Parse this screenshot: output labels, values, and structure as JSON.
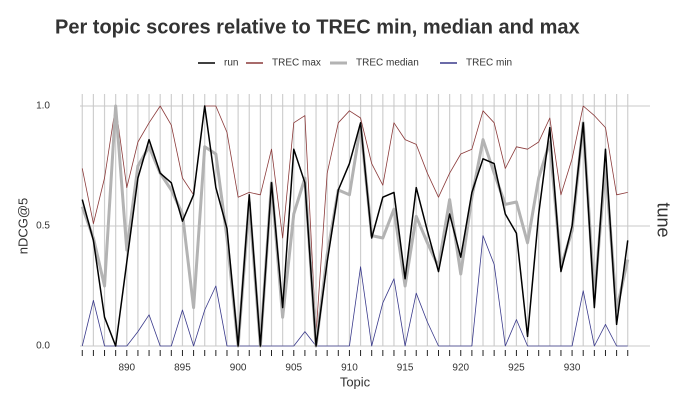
{
  "chart_data": {
    "type": "line",
    "title": "Per topic scores relative to TREC min, median and max",
    "xlabel": "Topic",
    "ylabel": "nDCG@5",
    "facet": "tune",
    "x": [
      886,
      887,
      888,
      889,
      890,
      891,
      892,
      893,
      894,
      895,
      896,
      897,
      898,
      899,
      900,
      901,
      902,
      903,
      904,
      905,
      906,
      907,
      908,
      909,
      910,
      911,
      912,
      913,
      914,
      915,
      916,
      917,
      918,
      919,
      920,
      921,
      922,
      923,
      924,
      925,
      926,
      927,
      928,
      929,
      930,
      931,
      932,
      933,
      934,
      935
    ],
    "series": [
      {
        "name": "TREC max",
        "color": "#8b3a3a",
        "width": 0.8,
        "values": [
          0.74,
          0.51,
          0.7,
          1.0,
          0.66,
          0.85,
          0.93,
          1.0,
          0.92,
          0.7,
          0.63,
          1.0,
          1.0,
          0.89,
          0.62,
          0.64,
          0.63,
          0.82,
          0.45,
          0.93,
          0.96,
          0.05,
          0.72,
          0.93,
          0.98,
          0.95,
          0.76,
          0.67,
          0.93,
          0.86,
          0.84,
          0.72,
          0.62,
          0.72,
          0.8,
          0.82,
          0.98,
          0.93,
          0.74,
          0.83,
          0.82,
          0.85,
          0.95,
          0.63,
          0.78,
          1.0,
          0.96,
          0.91,
          0.63,
          0.64
        ]
      },
      {
        "name": "TREC min",
        "color": "#3a3a8b",
        "width": 0.8,
        "values": [
          0.0,
          0.19,
          0.0,
          0.0,
          0.0,
          0.06,
          0.13,
          0.0,
          0.0,
          0.15,
          0.0,
          0.15,
          0.25,
          0.0,
          0.0,
          0.0,
          0.0,
          0.0,
          0.0,
          0.0,
          0.06,
          0.0,
          0.0,
          0.0,
          0.0,
          0.33,
          0.0,
          0.18,
          0.28,
          0.0,
          0.22,
          0.1,
          0.0,
          0.0,
          0.0,
          0.0,
          0.46,
          0.34,
          0.0,
          0.11,
          0.0,
          0.0,
          0.0,
          0.0,
          0.0,
          0.23,
          0.0,
          0.09,
          0.0,
          0.0
        ]
      },
      {
        "name": "TREC median",
        "color": "#b3b3b3",
        "width": 3,
        "values": [
          0.58,
          0.45,
          0.25,
          1.0,
          0.4,
          0.75,
          0.83,
          0.72,
          0.65,
          0.55,
          0.16,
          0.83,
          0.8,
          0.45,
          0.0,
          0.6,
          0.0,
          0.68,
          0.12,
          0.55,
          0.7,
          0.0,
          0.38,
          0.65,
          0.63,
          0.92,
          0.46,
          0.45,
          0.57,
          0.25,
          0.54,
          0.43,
          0.33,
          0.61,
          0.3,
          0.62,
          0.86,
          0.72,
          0.59,
          0.6,
          0.43,
          0.7,
          0.85,
          0.33,
          0.48,
          0.93,
          0.2,
          0.75,
          0.15,
          0.36
        ]
      },
      {
        "name": "run",
        "color": "#000000",
        "width": 1.5,
        "values": [
          0.61,
          0.44,
          0.12,
          0.0,
          0.35,
          0.7,
          0.86,
          0.72,
          0.68,
          0.52,
          0.63,
          1.0,
          0.66,
          0.49,
          0.0,
          0.63,
          0.0,
          0.68,
          0.16,
          0.82,
          0.68,
          0.0,
          0.35,
          0.65,
          0.76,
          0.93,
          0.45,
          0.62,
          0.64,
          0.28,
          0.66,
          0.48,
          0.31,
          0.55,
          0.37,
          0.64,
          0.78,
          0.76,
          0.55,
          0.47,
          0.04,
          0.55,
          0.91,
          0.31,
          0.5,
          0.93,
          0.16,
          0.82,
          0.09,
          0.44
        ]
      }
    ],
    "legend_order": [
      3,
      0,
      2,
      1
    ],
    "xlim": [
      884,
      937
    ],
    "xticks": [
      890,
      895,
      900,
      905,
      910,
      915,
      920,
      925,
      930
    ],
    "ylim": [
      -0.05,
      1.05
    ],
    "yticks": [
      {
        "value": 0,
        "label": "0.0"
      },
      {
        "value": 0.5,
        "label": "0.5"
      },
      {
        "value": 1,
        "label": "1.0"
      }
    ],
    "grid": true
  }
}
